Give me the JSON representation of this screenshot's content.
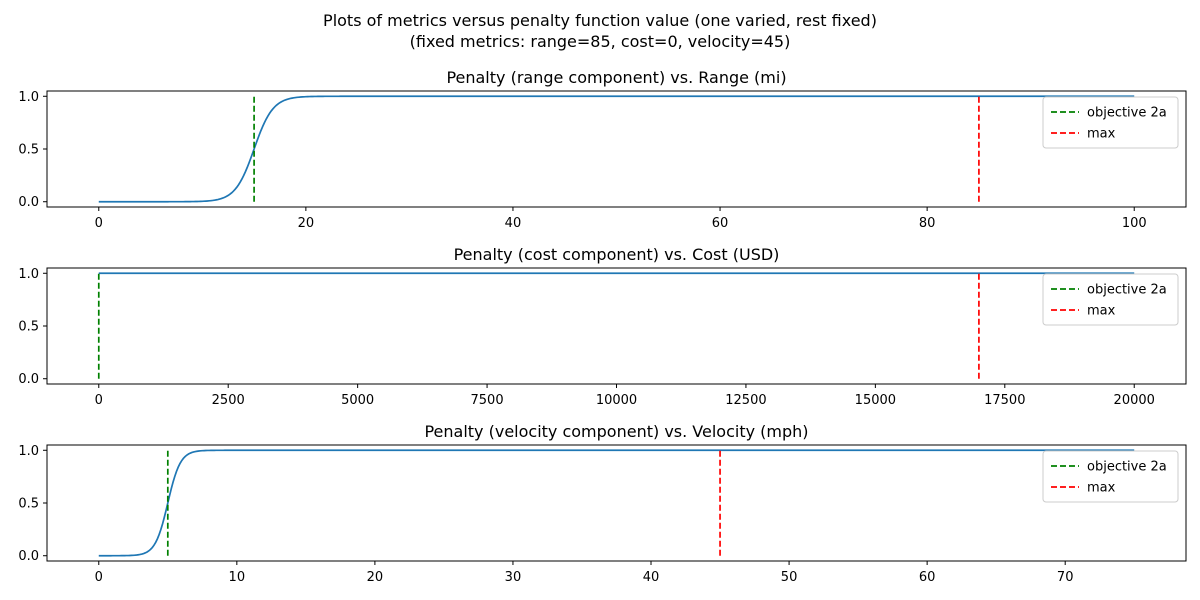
{
  "suptitle": {
    "line1": "Plots of metrics versus penalty function value (one varied, rest fixed)",
    "line2": "(fixed metrics: range=85, cost=0, velocity=45)"
  },
  "colors": {
    "curve": "#1f77b4",
    "objective": "#008000",
    "max": "#ff0000",
    "axis": "#000000"
  },
  "chart_data": [
    {
      "type": "line",
      "title": "Penalty (range component) vs. Range (mi)",
      "xlim": [
        -5,
        105
      ],
      "ylim": [
        -0.05,
        1.05
      ],
      "xticks": [
        0,
        20,
        40,
        60,
        80,
        100
      ],
      "xtick_labels": [
        "0",
        "20",
        "40",
        "60",
        "80",
        "100"
      ],
      "yticks": [
        0,
        0.5,
        1
      ],
      "ytick_labels": [
        "0.0",
        "0.5",
        "1.0"
      ],
      "series": [
        {
          "kind": "curve",
          "x_range": [
            0,
            100
          ],
          "sigmoid": {
            "midpoint": 15,
            "slope": 1.1
          }
        },
        {
          "name": "objective 2a",
          "kind": "vline",
          "x": 15,
          "y_range": [
            0,
            1
          ],
          "style": "dashed",
          "color": "#008000"
        },
        {
          "name": "max",
          "kind": "vline",
          "x": 85,
          "y_range": [
            0,
            1
          ],
          "style": "dashed",
          "color": "#ff0000"
        }
      ],
      "legend": {
        "position": "upper-right",
        "entries": [
          "objective 2a",
          "max"
        ]
      }
    },
    {
      "type": "line",
      "title": "Penalty (cost component) vs. Cost (USD)",
      "xlim": [
        -1000,
        21000
      ],
      "ylim": [
        -0.05,
        1.05
      ],
      "xticks": [
        0,
        2500,
        5000,
        7500,
        10000,
        12500,
        15000,
        17500,
        20000
      ],
      "xtick_labels": [
        "0",
        "2500",
        "5000",
        "7500",
        "10000",
        "12500",
        "15000",
        "17500",
        "20000"
      ],
      "yticks": [
        0,
        0.5,
        1
      ],
      "ytick_labels": [
        "0.0",
        "0.5",
        "1.0"
      ],
      "series": [
        {
          "kind": "curve",
          "x_range": [
            0,
            20000
          ],
          "constant": 1
        },
        {
          "name": "objective 2a",
          "kind": "vline",
          "x": 0,
          "y_range": [
            0,
            1
          ],
          "style": "dashed",
          "color": "#008000"
        },
        {
          "name": "max",
          "kind": "vline",
          "x": 17000,
          "y_range": [
            0,
            1
          ],
          "style": "dashed",
          "color": "#ff0000"
        }
      ],
      "legend": {
        "position": "upper-right",
        "entries": [
          "objective 2a",
          "max"
        ]
      }
    },
    {
      "type": "line",
      "title": "Penalty (velocity component) vs. Velocity (mph)",
      "xlim": [
        -3.75,
        78.75
      ],
      "ylim": [
        -0.05,
        1.05
      ],
      "xticks": [
        0,
        10,
        20,
        30,
        40,
        50,
        60,
        70
      ],
      "xtick_labels": [
        "0",
        "10",
        "20",
        "30",
        "40",
        "50",
        "60",
        "70"
      ],
      "yticks": [
        0,
        0.5,
        1
      ],
      "ytick_labels": [
        "0.0",
        "0.5",
        "1.0"
      ],
      "series": [
        {
          "kind": "curve",
          "x_range": [
            0,
            75
          ],
          "sigmoid": {
            "midpoint": 5,
            "slope": 2.2
          }
        },
        {
          "name": "objective 2a",
          "kind": "vline",
          "x": 5,
          "y_range": [
            0,
            1
          ],
          "style": "dashed",
          "color": "#008000"
        },
        {
          "name": "max",
          "kind": "vline",
          "x": 45,
          "y_range": [
            0,
            1
          ],
          "style": "dashed",
          "color": "#ff0000"
        }
      ],
      "legend": {
        "position": "upper-right",
        "entries": [
          "objective 2a",
          "max"
        ]
      }
    }
  ]
}
